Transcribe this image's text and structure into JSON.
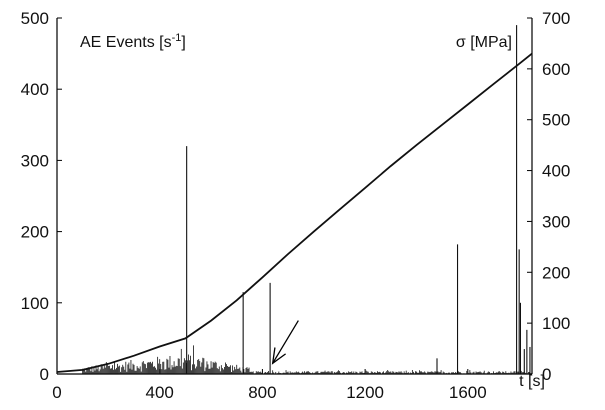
{
  "chart_data": {
    "type": "bar+line",
    "x": {
      "label": "t [s]",
      "range": [
        0,
        1850
      ],
      "ticks": [
        0,
        400,
        800,
        1200,
        1600
      ]
    },
    "y_left": {
      "label_main": "AE Events [s",
      "label_sup": "-1",
      "label_end": "]",
      "range": [
        0,
        500
      ],
      "ticks": [
        0,
        100,
        200,
        300,
        400,
        500
      ]
    },
    "y_right": {
      "label": "σ [MPa]",
      "range": [
        0,
        700
      ],
      "ticks": [
        0,
        100,
        200,
        300,
        400,
        500,
        600,
        700
      ]
    },
    "ae_spikes": [
      {
        "t": 505,
        "v": 320
      },
      {
        "t": 725,
        "v": 115
      },
      {
        "t": 830,
        "v": 128
      },
      {
        "t": 1480,
        "v": 22
      },
      {
        "t": 1560,
        "v": 182
      },
      {
        "t": 1790,
        "v": 490
      },
      {
        "t": 1800,
        "v": 175
      },
      {
        "t": 1805,
        "v": 100
      },
      {
        "t": 1820,
        "v": 35
      },
      {
        "t": 1830,
        "v": 62
      },
      {
        "t": 1842,
        "v": 38
      }
    ],
    "ae_background": {
      "t_start": 100,
      "t_end": 1850,
      "step": 4,
      "level_peak": 30,
      "level_tail": 4
    },
    "stress_curve": [
      {
        "t": 0,
        "s": 4
      },
      {
        "t": 100,
        "s": 8
      },
      {
        "t": 200,
        "s": 20
      },
      {
        "t": 300,
        "s": 36
      },
      {
        "t": 400,
        "s": 54
      },
      {
        "t": 500,
        "s": 70
      },
      {
        "t": 600,
        "s": 105
      },
      {
        "t": 700,
        "s": 145
      },
      {
        "t": 800,
        "s": 190
      },
      {
        "t": 900,
        "s": 236
      },
      {
        "t": 1000,
        "s": 280
      },
      {
        "t": 1100,
        "s": 323
      },
      {
        "t": 1200,
        "s": 366
      },
      {
        "t": 1300,
        "s": 409
      },
      {
        "t": 1400,
        "s": 450
      },
      {
        "t": 1500,
        "s": 490
      },
      {
        "t": 1600,
        "s": 530
      },
      {
        "t": 1700,
        "s": 570
      },
      {
        "t": 1800,
        "s": 610
      },
      {
        "t": 1850,
        "s": 630
      }
    ],
    "arrow": {
      "from": {
        "t": 940,
        "v": 75
      },
      "to": {
        "t": 840,
        "v": 15
      }
    },
    "grid": false,
    "colors": {
      "axis": "#000000",
      "series": "#111111"
    }
  }
}
